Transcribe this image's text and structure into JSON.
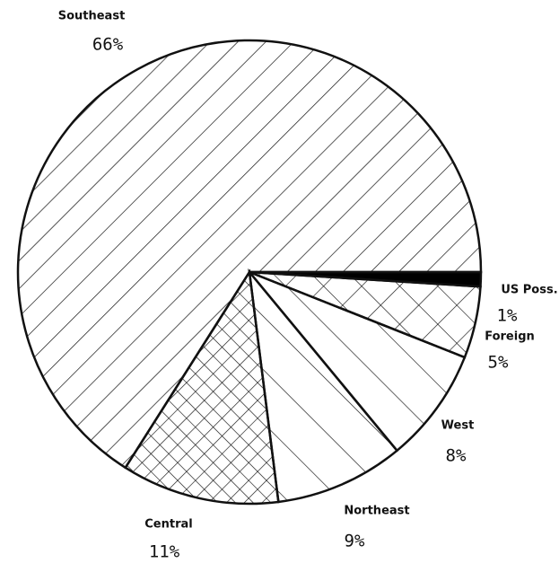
{
  "chart_data": {
    "type": "pie",
    "categories": [
      "US Poss.",
      "Foreign",
      "West",
      "Northeast",
      "Central",
      "Southeast"
    ],
    "values": [
      1,
      5,
      8,
      9,
      11,
      66
    ],
    "value_labels": [
      "1%",
      "5%",
      "8%",
      "9%",
      "11%",
      "66%"
    ]
  }
}
